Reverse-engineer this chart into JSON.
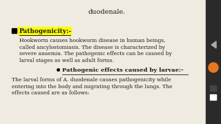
{
  "bg_color": "#f0ebe0",
  "top_text": "duodenale.",
  "bullet_label": "Pathogenicity:-",
  "bullet_highlight": "#ffff00",
  "bullet_text_lines": [
    "Hookworm causes hookworm disease in human beings,",
    "called ancylostomiasis. The disease is characterized by",
    "severe anaemia. The pathogenic effects can be caused by",
    "larval stages as well as adult forms."
  ],
  "sub_bullet_label": "Pathogenic effects caused by larvae:-",
  "sub_bullet_text_lines": [
    "The larval forms of A. duodenale causes pathogenicity while",
    "entering into the body and migrating through the lungs. The",
    "effects caused are as follows:"
  ],
  "orange_circle_color": "#e87820",
  "dark_sq_color": "#444444"
}
